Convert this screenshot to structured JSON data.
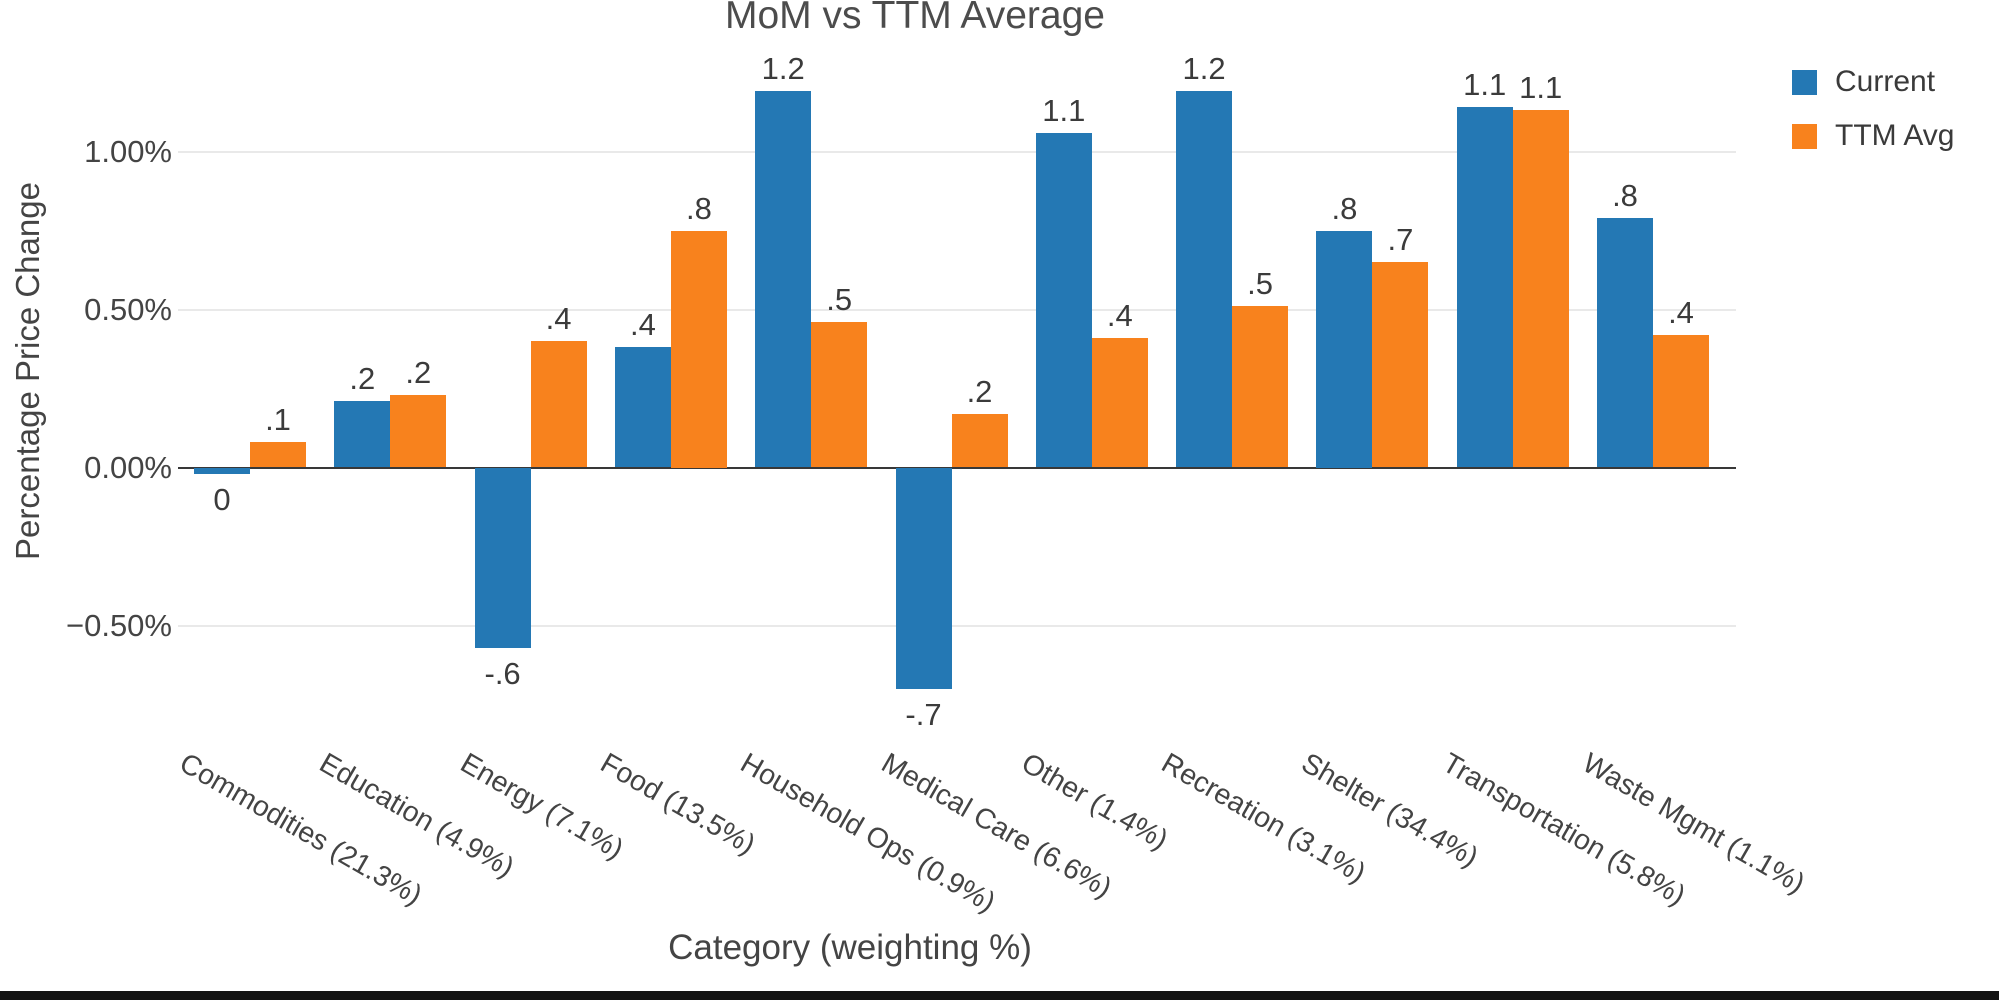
{
  "chart_data": {
    "type": "bar",
    "title": "MoM vs TTM Average",
    "xlabel": "Category (weighting %)",
    "ylabel": "Percentage Price Change",
    "legend_position": "top-right",
    "grid": true,
    "ylim": [
      -0.86,
      1.3
    ],
    "yticks": [
      {
        "v": 1.0,
        "label": "1.00%"
      },
      {
        "v": 0.5,
        "label": "0.50%"
      },
      {
        "v": 0.0,
        "label": "0.00%"
      },
      {
        "v": -0.5,
        "label": "−0.50%"
      }
    ],
    "categories": [
      "Commodities (21.3%)",
      "Education (4.9%)",
      "Energy (7.1%)",
      "Food (13.5%)",
      "Household Ops (0.9%)",
      "Medical Care (6.6%)",
      "Other (1.4%)",
      "Recreation (3.1%)",
      "Shelter (34.4%)",
      "Transportation (5.8%)",
      "Waste Mgmt (1.1%)"
    ],
    "series": [
      {
        "name": "Current",
        "color": "#2478b4",
        "values": [
          -0.02,
          0.21,
          -0.57,
          0.38,
          1.19,
          -0.7,
          1.06,
          1.19,
          0.75,
          1.14,
          0.79
        ],
        "labels": [
          "0",
          ".2",
          "-.6",
          ".4",
          "1.2",
          "-.7",
          "1.1",
          "1.2",
          ".8",
          "1.1",
          ".8"
        ]
      },
      {
        "name": "TTM Avg",
        "color": "#f8821d",
        "values": [
          0.08,
          0.23,
          0.4,
          0.75,
          0.46,
          0.17,
          0.41,
          0.51,
          0.65,
          1.13,
          0.42
        ],
        "labels": [
          ".1",
          ".2",
          ".4",
          ".8",
          ".5",
          ".2",
          ".4",
          ".5",
          ".7",
          "1.1",
          ".4"
        ]
      }
    ]
  }
}
